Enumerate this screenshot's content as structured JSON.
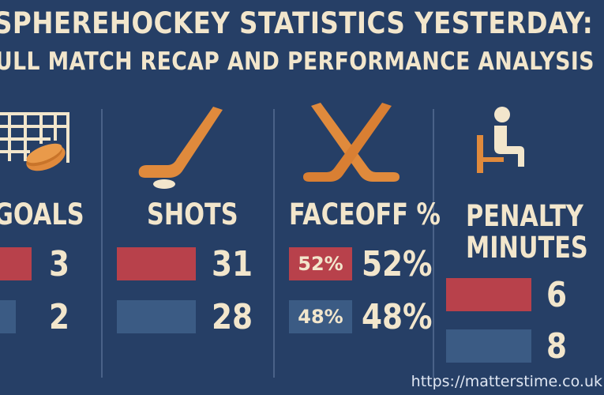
{
  "title": {
    "line1": "SPHEREHOCKEY STATISTICS YESTERDAY:",
    "line2": "ULL MATCH RECAP AND PERFORMANCE ANALYSIS"
  },
  "stats": [
    {
      "label": "GOALS",
      "icon": "hockey-net-icon",
      "home": "3",
      "away": "2"
    },
    {
      "label": "SHOTS",
      "icon": "hockey-stick-icon",
      "home": "31",
      "away": "28"
    },
    {
      "label": "FACEOFF %",
      "icon": "crossed-sticks-icon",
      "home": "52%",
      "away": "48%",
      "home_bar_label": "52%",
      "away_bar_label": "48%"
    },
    {
      "label_line1": "PENALTY",
      "label_line2": "MINUTES",
      "icon": "penalty-box-icon",
      "home": "6",
      "away": "8"
    }
  ],
  "colors": {
    "background": "#263f66",
    "home": "#b8414b",
    "away": "#3b5b84",
    "text": "#f2e6cc",
    "icon": "#e08a3c"
  },
  "watermark": "https://matterstime.co.uk"
}
